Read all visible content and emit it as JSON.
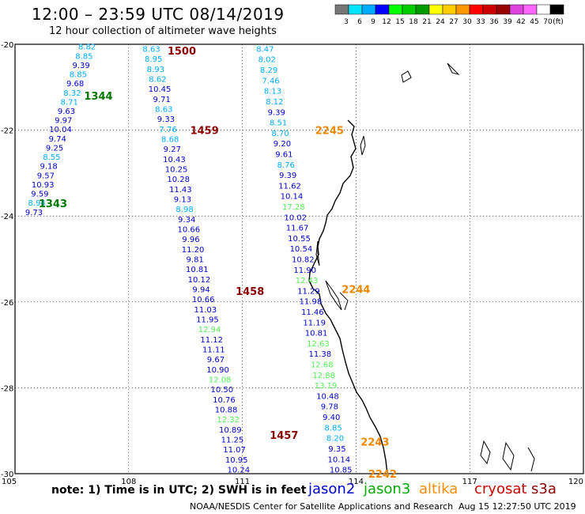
{
  "title": "12:00 – 23:59 UTC 08/14/2019",
  "subtitle": "12 hour collection of altimeter wave heights",
  "footer": {
    "note": "note:  1) Time is in UTC;  2) SWH is in feet",
    "credit": "NOAA/NESDIS Center for Satellite Applications and Research",
    "timestamp": "Aug 15 12:27:50 UTC 2019"
  },
  "satellites": [
    {
      "name": "jason2",
      "color": "#0000cc"
    },
    {
      "name": "jason3",
      "color": "#00aa00"
    },
    {
      "name": "altika",
      "color": "#ff8c00"
    },
    {
      "name": "cryosat",
      "color": "#cc0000"
    },
    {
      "name": "s3a",
      "color": "#8b0000"
    }
  ],
  "legend": {
    "labels": [
      "3",
      "6",
      "9",
      "12",
      "15",
      "18",
      "21",
      "24",
      "27",
      "30",
      "33",
      "36",
      "39",
      "42",
      "45",
      "70",
      "(ft)"
    ],
    "colors": [
      "#777777",
      "#00e5ff",
      "#00aaff",
      "#0000ff",
      "#00ff00",
      "#00cc00",
      "#009900",
      "#ffff00",
      "#ffcc00",
      "#ff9900",
      "#ff0000",
      "#cc0000",
      "#990000",
      "#dd44dd",
      "#ff66ff",
      "#ffffff",
      "#000000"
    ]
  },
  "chart_data": {
    "type": "scatter",
    "title": "12:00 – 23:59 UTC 08/14/2019",
    "subtitle": "12 hour collection of altimeter wave heights",
    "xlim": [
      105,
      120
    ],
    "ylim": [
      -30,
      -20
    ],
    "x_ticks": [
      "105",
      "108",
      "111",
      "114",
      "117",
      "120"
    ],
    "y_ticks": [
      "-20",
      "-22",
      "-24",
      "-26",
      "-28",
      "-30"
    ],
    "grid": true,
    "tracks": [
      {
        "pass": "1343/1344",
        "start": [
          106.9,
          -20.05
        ],
        "end": [
          105.5,
          -23.9
        ],
        "values": [
          "8.82",
          "8.85",
          "9.39",
          "8.85",
          "9.68",
          "8.32",
          "8.71",
          "9.63",
          "9.97",
          "10.04",
          "9.74",
          "9.25",
          "8.55",
          "9.18",
          "9.57",
          "10.93",
          "9.59",
          "8.94",
          "9.73"
        ],
        "colors": [
          "#00aaff",
          "#00aaff",
          "#0000cc",
          "#00aaff",
          "#0000cc",
          "#00aaff",
          "#00aaff",
          "#0000cc",
          "#0000cc",
          "#0000cc",
          "#0000cc",
          "#0000cc",
          "#00aaff",
          "#0000cc",
          "#0000cc",
          "#0000cc",
          "#0000cc",
          "#00aaff",
          "#0000cc"
        ],
        "labels": [
          {
            "text": "1344",
            "lon": 107.2,
            "lat": -21.2,
            "color": "#007700"
          },
          {
            "text": "1343",
            "lon": 106.0,
            "lat": -23.7,
            "color": "#007700"
          }
        ]
      },
      {
        "pass": "1500/1459/1458/1457",
        "start": [
          108.6,
          -20.1
        ],
        "end": [
          110.9,
          -29.9
        ],
        "values": [
          "8.63",
          "8.95",
          "8.93",
          "8.62",
          "10.45",
          "9.71",
          "8.63",
          "9.33",
          "7.76",
          "8.68",
          "9.27",
          "10.43",
          "10.25",
          "10.28",
          "11.43",
          "9.13",
          "8.98",
          "9.34",
          "10.66",
          "9.96",
          "11.20",
          "9.81",
          "10.81",
          "10.12",
          "9.94",
          "10.66",
          "11.03",
          "11.95",
          "12.94",
          "11.12",
          "11.11",
          "9.67",
          "10.90",
          "12.08",
          "10.50",
          "10.76",
          "10.88",
          "12.32",
          "10.89",
          "11.25",
          "11.07",
          "10.95",
          "10.24"
        ],
        "colors": [
          "#00aaff",
          "#00aaff",
          "#00aaff",
          "#00aaff",
          "#0000cc",
          "#0000cc",
          "#00aaff",
          "#0000cc",
          "#00aaff",
          "#00aaff",
          "#0000cc",
          "#0000cc",
          "#0000cc",
          "#0000cc",
          "#0000cc",
          "#0000cc",
          "#00aaff",
          "#0000cc",
          "#0000cc",
          "#0000cc",
          "#0000cc",
          "#0000cc",
          "#0000cc",
          "#0000cc",
          "#0000cc",
          "#0000cc",
          "#0000cc",
          "#0000cc",
          "#55ee55",
          "#0000cc",
          "#0000cc",
          "#0000cc",
          "#0000cc",
          "#55ee55",
          "#0000cc",
          "#0000cc",
          "#0000cc",
          "#55ee55",
          "#0000cc",
          "#0000cc",
          "#0000cc",
          "#0000cc",
          "#0000cc"
        ],
        "labels": [
          {
            "text": "1500",
            "lon": 109.4,
            "lat": -20.15,
            "color": "#8b0000"
          },
          {
            "text": "1459",
            "lon": 110.0,
            "lat": -22.0,
            "color": "#8b0000"
          },
          {
            "text": "1458",
            "lon": 111.2,
            "lat": -25.75,
            "color": "#8b0000"
          },
          {
            "text": "1457",
            "lon": 112.1,
            "lat": -29.1,
            "color": "#8b0000"
          }
        ]
      },
      {
        "pass": "2245/2244/2243/2242",
        "start": [
          111.6,
          -20.1
        ],
        "end": [
          113.6,
          -29.9
        ],
        "values": [
          "8.47",
          "8.02",
          "8.29",
          "7.46",
          "8.13",
          "8.12",
          "9.39",
          "8.51",
          "8.70",
          "9.20",
          "9.61",
          "8.76",
          "9.39",
          "11.62",
          "10.14",
          "17.28",
          "10.02",
          "11.67",
          "10.55",
          "10.54",
          "10.82",
          "11.90",
          "12.43",
          "11.29",
          "11.98",
          "11.46",
          "11.19",
          "10.81",
          "12.63",
          "11.38",
          "12.68",
          "12.88",
          "13.19",
          "10.48",
          "9.78",
          "9.40",
          "8.85",
          "8.20",
          "9.35",
          "10.14",
          "10.85"
        ],
        "colors": [
          "#00aaff",
          "#00aaff",
          "#00aaff",
          "#00aaff",
          "#00aaff",
          "#00aaff",
          "#0000cc",
          "#00aaff",
          "#00aaff",
          "#0000cc",
          "#0000cc",
          "#00aaff",
          "#0000cc",
          "#0000cc",
          "#0000cc",
          "#55ee55",
          "#0000cc",
          "#0000cc",
          "#0000cc",
          "#0000cc",
          "#0000cc",
          "#0000cc",
          "#55ee55",
          "#0000cc",
          "#0000cc",
          "#0000cc",
          "#0000cc",
          "#0000cc",
          "#55ee55",
          "#0000cc",
          "#55ee55",
          "#55ee55",
          "#55ee55",
          "#0000cc",
          "#0000cc",
          "#0000cc",
          "#00aaff",
          "#00aaff",
          "#0000cc",
          "#0000cc",
          "#0000cc"
        ],
        "labels": [
          {
            "text": "2245",
            "lon": 113.3,
            "lat": -22.0,
            "color": "#ee8800"
          },
          {
            "text": "2244",
            "lon": 114.0,
            "lat": -25.7,
            "color": "#ee8800"
          },
          {
            "text": "2243",
            "lon": 114.5,
            "lat": -29.25,
            "color": "#ee8800"
          },
          {
            "text": "2242",
            "lon": 114.7,
            "lat": -30.0,
            "color": "#ee8800"
          }
        ]
      }
    ]
  }
}
